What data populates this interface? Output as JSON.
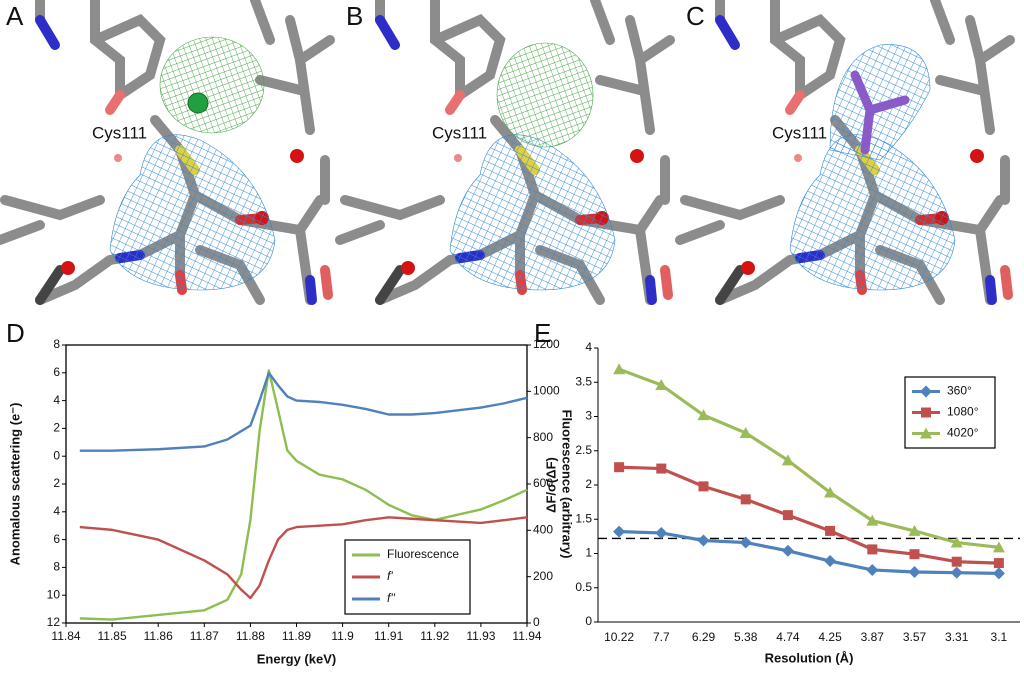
{
  "panels": [
    {
      "label": "A",
      "residue": "Cys111"
    },
    {
      "label": "B",
      "residue": "Cys111"
    },
    {
      "label": "C",
      "residue": "Cys111"
    }
  ],
  "chart_data": [
    {
      "type": "line",
      "panel": "D",
      "frame": "box",
      "legend": "lower right",
      "x_label": "Energy (keV)",
      "y_label": "Anomalous scattering (e⁻)",
      "y2_label": "Fluorescence (arbitrary)",
      "x": [
        11.843,
        11.85,
        11.86,
        11.87,
        11.875,
        11.878,
        11.88,
        11.882,
        11.884,
        11.886,
        11.888,
        11.89,
        11.895,
        11.9,
        11.905,
        11.91,
        11.915,
        11.92,
        11.93,
        11.935,
        11.94
      ],
      "xlim": [
        11.84,
        11.94
      ],
      "xticks": [
        11.84,
        11.85,
        11.86,
        11.87,
        11.88,
        11.89,
        11.9,
        11.91,
        11.92,
        11.93,
        11.94
      ],
      "ylim": [
        -12,
        8
      ],
      "yticks": [
        {
          "value": -12,
          "label": "12"
        },
        {
          "value": -10,
          "label": "10"
        },
        {
          "value": -8,
          "label": "8"
        },
        {
          "value": -6,
          "label": "6"
        },
        {
          "value": -4,
          "label": "4"
        },
        {
          "value": -2,
          "label": "2"
        },
        0,
        2,
        4,
        6,
        8
      ],
      "y2lim": [
        0,
        1200
      ],
      "y2ticks": [
        0,
        200,
        400,
        600,
        800,
        1000,
        1200
      ],
      "series": [
        {
          "name": "Fluorescence",
          "color": "#8cbf4f",
          "axis": "y2",
          "values": [
            20,
            15,
            35,
            55,
            100,
            210,
            445,
            830,
            1090,
            920,
            745,
            700,
            640,
            620,
            575,
            510,
            465,
            445,
            490,
            530,
            575
          ]
        },
        {
          "name": "f'",
          "color": "#c0504d",
          "values": [
            -5.1,
            -5.3,
            -6.0,
            -7.5,
            -8.5,
            -9.6,
            -10.2,
            -9.3,
            -7.5,
            -6.0,
            -5.3,
            -5.1,
            -5.0,
            -4.9,
            -4.6,
            -4.4,
            -4.5,
            -4.6,
            -4.8,
            -4.6,
            -4.4
          ]
        },
        {
          "name": "f''",
          "color": "#4f81bd",
          "values": [
            0.4,
            0.4,
            0.5,
            0.7,
            1.2,
            1.8,
            2.2,
            4.0,
            6.0,
            5.1,
            4.3,
            4.0,
            3.9,
            3.7,
            3.4,
            3.0,
            3.0,
            3.1,
            3.5,
            3.8,
            4.2
          ]
        }
      ]
    },
    {
      "type": "line",
      "panel": "E",
      "frame": "axes",
      "legend": "upper right",
      "x_label": "Resolution (Å)",
      "y_label": "ΔF/σ(ΔF)",
      "categories": [
        "10.22",
        "7.7",
        "6.29",
        "5.38",
        "4.74",
        "4.25",
        "3.87",
        "3.57",
        "3.31",
        "3.1"
      ],
      "ylim": [
        0,
        4
      ],
      "yticks": [
        0,
        0.5,
        1,
        1.5,
        2,
        2.5,
        3,
        3.5,
        4
      ],
      "reference_line": 1.22,
      "series": [
        {
          "name": "360°",
          "color": "#4f81bd",
          "marker": "diamond",
          "values": [
            1.32,
            1.3,
            1.19,
            1.16,
            1.04,
            0.89,
            0.76,
            0.73,
            0.72,
            0.71
          ]
        },
        {
          "name": "1080°",
          "color": "#c0504d",
          "marker": "square",
          "values": [
            2.26,
            2.24,
            1.98,
            1.79,
            1.56,
            1.33,
            1.06,
            0.99,
            0.88,
            0.86
          ]
        },
        {
          "name": "4020°",
          "color": "#9bbb59",
          "marker": "triangle",
          "values": [
            3.69,
            3.46,
            3.02,
            2.76,
            2.36,
            1.89,
            1.48,
            1.33,
            1.16,
            1.09
          ]
        }
      ]
    }
  ]
}
